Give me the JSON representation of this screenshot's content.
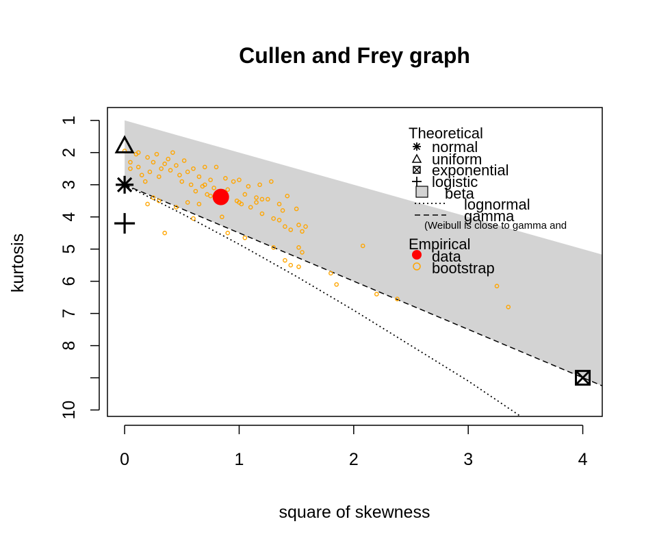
{
  "chart_data": {
    "type": "scatter",
    "title": "Cullen and Frey graph",
    "xlabel": "square of skewness",
    "ylabel": "kurtosis",
    "xlim": [
      -0.15,
      4.17
    ],
    "ylim": [
      10.2,
      0.6
    ],
    "y_reversed": true,
    "x_ticks": [
      "0",
      "1",
      "2",
      "3",
      "4"
    ],
    "y_ticks": [
      "1",
      "2",
      "3",
      "4",
      "5",
      "6",
      "7",
      "8",
      "",
      "10"
    ],
    "y_tick_values": [
      1,
      2,
      3,
      4,
      5,
      6,
      7,
      8,
      9,
      10
    ],
    "beta_region": {
      "upper": [
        [
          0,
          1
        ],
        [
          4.17,
          5.17
        ]
      ],
      "lower": [
        [
          0,
          3
        ],
        [
          4.17,
          9.25
        ]
      ]
    },
    "gamma_line": [
      [
        0,
        3
      ],
      [
        4.17,
        9.25
      ]
    ],
    "lognormal_line": [
      [
        0,
        3
      ],
      [
        0.5,
        3.9
      ],
      [
        1,
        4.85
      ],
      [
        1.5,
        5.85
      ],
      [
        2,
        6.9
      ],
      [
        2.5,
        8.0
      ],
      [
        3,
        9.1
      ],
      [
        3.5,
        10.3
      ]
    ],
    "theoretical_points": {
      "normal": [
        0,
        3
      ],
      "uniform": [
        0,
        1.8
      ],
      "exponential": [
        4,
        9
      ],
      "logistic": [
        0,
        4.2
      ]
    },
    "observation": {
      "x": 0.84,
      "y": 3.38
    },
    "bootstrap": [
      [
        0.0,
        1.95
      ],
      [
        0.05,
        2.3
      ],
      [
        0.1,
        2.05
      ],
      [
        0.12,
        2.45
      ],
      [
        0.15,
        2.7
      ],
      [
        0.18,
        2.9
      ],
      [
        0.2,
        2.15
      ],
      [
        0.22,
        2.6
      ],
      [
        0.25,
        2.3
      ],
      [
        0.28,
        2.05
      ],
      [
        0.3,
        2.75
      ],
      [
        0.32,
        2.5
      ],
      [
        0.35,
        2.35
      ],
      [
        0.38,
        2.2
      ],
      [
        0.4,
        2.55
      ],
      [
        0.42,
        2.0
      ],
      [
        0.45,
        2.4
      ],
      [
        0.48,
        2.7
      ],
      [
        0.5,
        2.9
      ],
      [
        0.52,
        2.25
      ],
      [
        0.55,
        2.6
      ],
      [
        0.58,
        3.0
      ],
      [
        0.6,
        2.5
      ],
      [
        0.62,
        3.2
      ],
      [
        0.65,
        2.75
      ],
      [
        0.68,
        3.05
      ],
      [
        0.7,
        2.45
      ],
      [
        0.72,
        3.3
      ],
      [
        0.75,
        2.85
      ],
      [
        0.78,
        3.1
      ],
      [
        0.8,
        2.45
      ],
      [
        0.85,
        3.55
      ],
      [
        0.88,
        2.8
      ],
      [
        0.9,
        3.15
      ],
      [
        0.95,
        2.9
      ],
      [
        0.98,
        3.5
      ],
      [
        1.0,
        2.85
      ],
      [
        1.02,
        3.6
      ],
      [
        1.05,
        3.3
      ],
      [
        1.08,
        3.05
      ],
      [
        1.1,
        3.7
      ],
      [
        1.15,
        3.4
      ],
      [
        1.18,
        3.0
      ],
      [
        1.2,
        3.9
      ],
      [
        1.25,
        3.45
      ],
      [
        1.28,
        2.9
      ],
      [
        1.3,
        4.05
      ],
      [
        1.35,
        3.6
      ],
      [
        1.38,
        3.8
      ],
      [
        1.4,
        4.3
      ],
      [
        1.42,
        3.35
      ],
      [
        1.45,
        4.4
      ],
      [
        1.5,
        3.75
      ],
      [
        1.52,
        4.25
      ],
      [
        1.55,
        4.45
      ],
      [
        1.58,
        4.3
      ],
      [
        0.3,
        3.5
      ],
      [
        0.2,
        3.6
      ],
      [
        0.35,
        4.5
      ],
      [
        0.55,
        3.55
      ],
      [
        0.6,
        4.05
      ],
      [
        0.85,
        4.0
      ],
      [
        0.9,
        4.5
      ],
      [
        1.05,
        4.65
      ],
      [
        1.3,
        4.95
      ],
      [
        1.4,
        5.35
      ],
      [
        1.45,
        5.5
      ],
      [
        1.52,
        5.55
      ],
      [
        1.55,
        5.1
      ],
      [
        1.52,
        4.95
      ],
      [
        1.8,
        5.75
      ],
      [
        1.85,
        6.1
      ],
      [
        2.08,
        4.9
      ],
      [
        2.2,
        6.4
      ],
      [
        2.38,
        6.55
      ],
      [
        3.25,
        6.15
      ],
      [
        3.35,
        6.8
      ],
      [
        0.12,
        2.0
      ],
      [
        0.45,
        3.7
      ],
      [
        0.65,
        3.6
      ],
      [
        0.75,
        3.35
      ],
      [
        1.15,
        3.55
      ],
      [
        1.35,
        4.1
      ],
      [
        0.25,
        3.4
      ],
      [
        1.0,
        3.55
      ],
      [
        0.05,
        2.5
      ],
      [
        0.7,
        3.0
      ],
      [
        1.2,
        3.45
      ]
    ],
    "legend": {
      "theoretical_title": "Theoretical",
      "items": [
        "normal",
        "uniform",
        "exponential",
        "logistic",
        "beta",
        "lognormal",
        "gamma"
      ],
      "note": "(Weibull is close to gamma and",
      "empirical_title": "Empirical",
      "empirical_items": [
        "data",
        "bootstrap"
      ]
    },
    "colors": {
      "beta_region": "#d3d3d3",
      "observation": "#ff0000",
      "bootstrap": "#ffa500"
    }
  }
}
